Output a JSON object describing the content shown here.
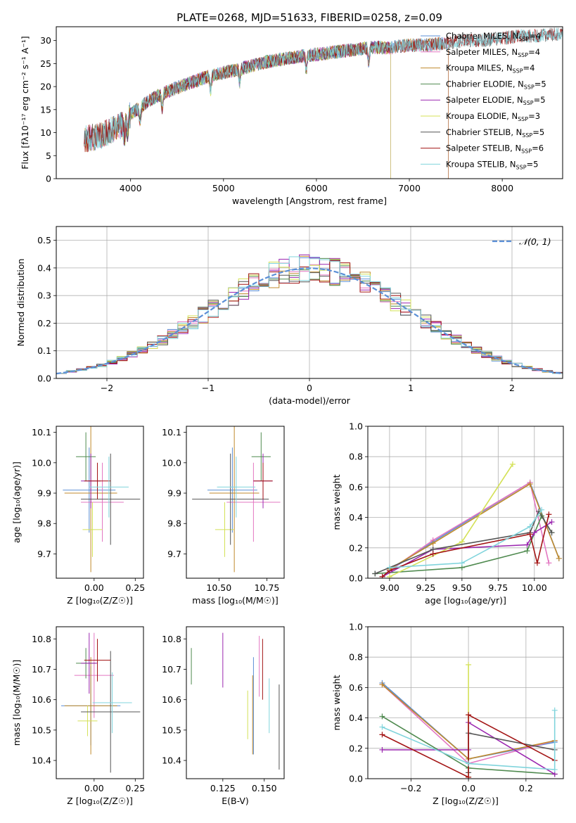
{
  "figure": {
    "title": "PLATE=0268, MJD=51633, FIBERID=0258, z=0.09"
  },
  "colors": {
    "Chabrier MILES": "#5b8fd6",
    "Salpeter MILES": "#e377c2",
    "Kroupa MILES": "#c08a2c",
    "Chabrier ELODIE": "#4f8a4f",
    "Salpeter ELODIE": "#9b27b0",
    "Kroupa ELODIE": "#d4e157",
    "Chabrier STELIB": "#555555",
    "Salpeter STELIB": "#a31515",
    "Kroupa STELIB": "#80d4dc",
    "gauss": "#5b8fd6"
  },
  "chart_data": [
    {
      "id": "spectrum",
      "type": "line",
      "title": "PLATE=0268, MJD=51633, FIBERID=0258, z=0.09",
      "xlabel": "wavelength [Angstrom, rest frame]",
      "ylabel": "Flux [fλ10⁻¹⁷ erg cm⁻² s⁻¹ A⁻¹]",
      "xlim": [
        3200,
        8650
      ],
      "ylim": [
        0,
        33
      ],
      "xticks": [
        4000,
        5000,
        6000,
        7000,
        8000
      ],
      "yticks": [
        0,
        5,
        10,
        15,
        20,
        25,
        30
      ],
      "grid": false,
      "legend_position": "top-right",
      "legend": [
        {
          "label": "Chabrier MILES, N",
          "sub": "SSP",
          "suffix": "=4",
          "color": "#5b8fd6"
        },
        {
          "label": "Salpeter MILES, N",
          "sub": "SSP",
          "suffix": "=4",
          "color": "#e377c2"
        },
        {
          "label": "Kroupa MILES, N",
          "sub": "SSP",
          "suffix": "=4",
          "color": "#c08a2c"
        },
        {
          "label": "Chabrier ELODIE, N",
          "sub": "SSP",
          "suffix": "=5",
          "color": "#4f8a4f"
        },
        {
          "label": "Salpeter ELODIE, N",
          "sub": "SSP",
          "suffix": "=5",
          "color": "#9b27b0"
        },
        {
          "label": "Kroupa ELODIE, N",
          "sub": "SSP",
          "suffix": "=3",
          "color": "#d4e157"
        },
        {
          "label": "Chabrier STELIB, N",
          "sub": "SSP",
          "suffix": "=5",
          "color": "#555555"
        },
        {
          "label": "Salpeter STELIB, N",
          "sub": "SSP",
          "suffix": "=6",
          "color": "#a31515"
        },
        {
          "label": "Kroupa STELIB, N",
          "sub": "SSP",
          "suffix": "=5",
          "color": "#80d4dc"
        }
      ],
      "continuum": {
        "x": [
          3500,
          3700,
          3900,
          4000,
          4200,
          4400,
          4600,
          4800,
          5000,
          5200,
          5500,
          5800,
          6000,
          6200,
          6400,
          6600,
          6800,
          7000,
          7200,
          7400,
          7600,
          7800,
          8000,
          8200,
          8400,
          8600
        ],
        "y": [
          8.5,
          9.5,
          11.5,
          14,
          17,
          19,
          20.5,
          22,
          23,
          24,
          25.5,
          26.5,
          27,
          27.5,
          28,
          28.5,
          28.5,
          29,
          29,
          29.5,
          30,
          30,
          30.5,
          31,
          31,
          31.5
        ]
      },
      "model_segments": [
        {
          "series": "Chabrier MILES",
          "x": [
            3500,
            7420
          ]
        },
        {
          "series": "Salpeter MILES",
          "x": [
            3500,
            7420
          ]
        },
        {
          "series": "Kroupa MILES",
          "x": [
            3500,
            7420
          ]
        },
        {
          "series": "Chabrier ELODIE",
          "x": [
            3900,
            6800
          ]
        },
        {
          "series": "Salpeter ELODIE",
          "x": [
            3900,
            6800
          ]
        },
        {
          "series": "Kroupa ELODIE",
          "x": [
            3900,
            6800
          ]
        },
        {
          "series": "Chabrier STELIB",
          "x": [
            3500,
            8650
          ]
        },
        {
          "series": "Salpeter STELIB",
          "x": [
            3500,
            8650
          ]
        },
        {
          "series": "Kroupa STELIB",
          "x": [
            3500,
            8650
          ]
        }
      ]
    },
    {
      "id": "residuals",
      "type": "bar",
      "xlabel": "(data-model)/error",
      "ylabel": "Normed distribution",
      "xlim": [
        -2.5,
        2.5
      ],
      "ylim": [
        0,
        0.55
      ],
      "xticks": [
        -2,
        -1,
        0,
        1,
        2
      ],
      "yticks": [
        0.0,
        0.1,
        0.2,
        0.3,
        0.4,
        0.5
      ],
      "grid": true,
      "legend_position": "top-right",
      "legend_label": "𝒩(0, 1)",
      "bins": {
        "start": -2.5,
        "width": 0.1,
        "count": 50
      },
      "curve": "gaussian mean 0 sigma 1"
    },
    {
      "id": "age_vs_Z",
      "type": "scatter",
      "xlabel": "Z [log₁₀(Z/Z☉)]",
      "ylabel": "age  [log₁₀(age/yr)]",
      "xlim": [
        -0.23,
        0.3
      ],
      "ylim": [
        9.62,
        10.12
      ],
      "xticks": [
        0.0,
        0.25
      ],
      "yticks": [
        9.7,
        9.8,
        9.9,
        10.0,
        10.1
      ],
      "points": [
        {
          "series": "Chabrier MILES",
          "x": -0.03,
          "xerr": 0.16,
          "y": 9.91,
          "yerr": 0.14
        },
        {
          "series": "Salpeter MILES",
          "x": 0.05,
          "xerr": 0.13,
          "y": 9.87,
          "yerr": 0.13
        },
        {
          "series": "Kroupa MILES",
          "x": -0.02,
          "xerr": 0.16,
          "y": 9.9,
          "yerr": 0.26
        },
        {
          "series": "Chabrier ELODIE",
          "x": -0.05,
          "xerr": 0.06,
          "y": 10.02,
          "yerr": 0.08
        },
        {
          "series": "Salpeter ELODIE",
          "x": -0.02,
          "xerr": 0.06,
          "y": 9.94,
          "yerr": 0.09
        },
        {
          "series": "Kroupa ELODIE",
          "x": -0.01,
          "xerr": 0.06,
          "y": 9.78,
          "yerr": 0.09
        },
        {
          "series": "Chabrier STELIB",
          "x": 0.1,
          "xerr": 0.18,
          "y": 9.88,
          "yerr": 0.15
        },
        {
          "series": "Salpeter STELIB",
          "x": 0.02,
          "xerr": 0.08,
          "y": 9.94,
          "yerr": 0.06
        },
        {
          "series": "Kroupa STELIB",
          "x": 0.09,
          "xerr": 0.12,
          "y": 9.92,
          "yerr": 0.1
        }
      ]
    },
    {
      "id": "age_vs_mass",
      "type": "scatter",
      "xlabel": "mass [log₁₀(M/M☉)]",
      "ylabel": "",
      "xlim": [
        10.33,
        10.84
      ],
      "ylim": [
        9.62,
        10.12
      ],
      "xticks": [
        10.5,
        10.75
      ],
      "yticks": [
        9.7,
        9.8,
        9.9,
        10.0,
        10.1
      ],
      "points": [
        {
          "series": "Chabrier MILES",
          "x": 10.57,
          "xerr": 0.13,
          "y": 9.91,
          "yerr": 0.14
        },
        {
          "series": "Salpeter MILES",
          "x": 10.68,
          "xerr": 0.14,
          "y": 9.87,
          "yerr": 0.13
        },
        {
          "series": "Kroupa MILES",
          "x": 10.58,
          "xerr": 0.13,
          "y": 9.9,
          "yerr": 0.26
        },
        {
          "series": "Chabrier ELODIE",
          "x": 10.72,
          "xerr": 0.05,
          "y": 10.02,
          "yerr": 0.08
        },
        {
          "series": "Salpeter ELODIE",
          "x": 10.73,
          "xerr": 0.05,
          "y": 9.94,
          "yerr": 0.09
        },
        {
          "series": "Kroupa ELODIE",
          "x": 10.53,
          "xerr": 0.05,
          "y": 9.78,
          "yerr": 0.09
        },
        {
          "series": "Chabrier STELIB",
          "x": 10.56,
          "xerr": 0.2,
          "y": 9.88,
          "yerr": 0.15
        },
        {
          "series": "Salpeter STELIB",
          "x": 10.73,
          "xerr": 0.05,
          "y": 9.94,
          "yerr": 0.06
        },
        {
          "series": "Kroupa STELIB",
          "x": 10.59,
          "xerr": 0.1,
          "y": 9.92,
          "yerr": 0.1
        }
      ]
    },
    {
      "id": "weight_vs_age",
      "type": "line",
      "xlabel": "age  [log₁₀(age/yr)]",
      "ylabel": "mass weight",
      "xlim": [
        8.85,
        10.2
      ],
      "ylim": [
        0,
        1.0
      ],
      "xticks": [
        9.0,
        9.25,
        9.5,
        9.75,
        10.0
      ],
      "yticks": [
        0.0,
        0.2,
        0.4,
        0.6,
        0.8,
        1.0
      ],
      "grid": true,
      "series": [
        {
          "name": "Chabrier MILES",
          "x": [
            9.0,
            9.3,
            9.97,
            10.17
          ],
          "y": [
            0.05,
            0.24,
            0.63,
            0.13
          ]
        },
        {
          "name": "Salpeter MILES",
          "x": [
            9.0,
            9.3,
            9.97,
            10.1
          ],
          "y": [
            0.05,
            0.25,
            0.63,
            0.1
          ]
        },
        {
          "name": "Kroupa MILES",
          "x": [
            9.0,
            9.3,
            9.97,
            10.17
          ],
          "y": [
            0.06,
            0.23,
            0.62,
            0.13
          ]
        },
        {
          "name": "Chabrier ELODIE",
          "x": [
            8.9,
            9.5,
            9.95,
            10.05,
            10.12
          ],
          "y": [
            0.03,
            0.07,
            0.18,
            0.41,
            0.3
          ]
        },
        {
          "name": "Salpeter ELODIE",
          "x": [
            8.95,
            9.3,
            9.95,
            10.0,
            10.12
          ],
          "y": [
            0.01,
            0.19,
            0.22,
            0.3,
            0.37
          ]
        },
        {
          "name": "Kroupa ELODIE",
          "x": [
            9.0,
            9.5,
            9.85
          ],
          "y": [
            0.01,
            0.24,
            0.75
          ]
        },
        {
          "name": "Chabrier STELIB",
          "x": [
            8.9,
            9.3,
            9.97,
            10.03,
            10.12
          ],
          "y": [
            0.03,
            0.19,
            0.3,
            0.44,
            0.3
          ]
        },
        {
          "name": "Salpeter STELIB",
          "x": [
            8.95,
            9.0,
            9.3,
            9.97,
            10.02,
            10.1
          ],
          "y": [
            0.01,
            0.05,
            0.16,
            0.29,
            0.1,
            0.42
          ]
        },
        {
          "name": "Kroupa STELIB",
          "x": [
            9.0,
            9.5,
            9.97,
            10.05
          ],
          "y": [
            0.07,
            0.1,
            0.34,
            0.45
          ]
        }
      ]
    },
    {
      "id": "mass_vs_Z",
      "type": "scatter",
      "xlabel": "Z [log₁₀(Z/Z☉)]",
      "ylabel": "mass [log₁₀(M/M☉)]",
      "xlim": [
        -0.23,
        0.3
      ],
      "ylim": [
        10.34,
        10.84
      ],
      "xticks": [
        0.0,
        0.25
      ],
      "yticks": [
        10.4,
        10.5,
        10.6,
        10.7,
        10.8
      ],
      "points": [
        {
          "series": "Chabrier MILES",
          "x": -0.02,
          "xerr": 0.18,
          "y": 10.58,
          "yerr": 0.13
        },
        {
          "series": "Salpeter MILES",
          "x": 0.0,
          "xerr": 0.12,
          "y": 10.68,
          "yerr": 0.14
        },
        {
          "series": "Kroupa MILES",
          "x": -0.02,
          "xerr": 0.16,
          "y": 10.58,
          "yerr": 0.16
        },
        {
          "series": "Chabrier ELODIE",
          "x": -0.05,
          "xerr": 0.06,
          "y": 10.72,
          "yerr": 0.05
        },
        {
          "series": "Salpeter ELODIE",
          "x": -0.03,
          "xerr": 0.05,
          "y": 10.72,
          "yerr": 0.1
        },
        {
          "series": "Kroupa ELODIE",
          "x": -0.04,
          "xerr": 0.06,
          "y": 10.53,
          "yerr": 0.05
        },
        {
          "series": "Chabrier STELIB",
          "x": 0.1,
          "xerr": 0.18,
          "y": 10.56,
          "yerr": 0.2
        },
        {
          "series": "Salpeter STELIB",
          "x": 0.02,
          "xerr": 0.08,
          "y": 10.73,
          "yerr": 0.07
        },
        {
          "series": "Kroupa STELIB",
          "x": 0.11,
          "xerr": 0.12,
          "y": 10.59,
          "yerr": 0.1
        }
      ]
    },
    {
      "id": "mass_vs_ebv",
      "type": "scatter",
      "xlabel": "E(B-V)",
      "ylabel": "",
      "xlim": [
        0.103,
        0.162
      ],
      "ylim": [
        10.34,
        10.84
      ],
      "xticks": [
        0.125,
        0.15
      ],
      "yticks": [
        10.4,
        10.5,
        10.6,
        10.7,
        10.8
      ],
      "points": [
        {
          "series": "Chabrier MILES",
          "x": 0.1435,
          "xerr": 0,
          "y": 10.58,
          "yerr": 0.16
        },
        {
          "series": "Salpeter MILES",
          "x": 0.147,
          "xerr": 0,
          "y": 10.71,
          "yerr": 0.1
        },
        {
          "series": "Kroupa MILES",
          "x": 0.143,
          "xerr": 0,
          "y": 10.55,
          "yerr": 0.13
        },
        {
          "series": "Chabrier ELODIE",
          "x": 0.106,
          "xerr": 0,
          "y": 10.71,
          "yerr": 0.06
        },
        {
          "series": "Salpeter ELODIE",
          "x": 0.125,
          "xerr": 0,
          "y": 10.73,
          "yerr": 0.09
        },
        {
          "series": "Kroupa ELODIE",
          "x": 0.14,
          "xerr": 0,
          "y": 10.55,
          "yerr": 0.08
        },
        {
          "series": "Chabrier STELIB",
          "x": 0.159,
          "xerr": 0,
          "y": 10.51,
          "yerr": 0.14
        },
        {
          "series": "Salpeter STELIB",
          "x": 0.149,
          "xerr": 0,
          "y": 10.7,
          "yerr": 0.1
        },
        {
          "series": "Kroupa STELIB",
          "x": 0.153,
          "xerr": 0,
          "y": 10.58,
          "yerr": 0.09
        }
      ]
    },
    {
      "id": "weight_vs_Z",
      "type": "line",
      "xlabel": "Z [log₁₀(Z/Z☉)]",
      "ylabel": "mass weight",
      "xlim": [
        -0.35,
        0.33
      ],
      "ylim": [
        0,
        1.0
      ],
      "xticks": [
        -0.2,
        0.0,
        0.2
      ],
      "yticks": [
        0.0,
        0.2,
        0.4,
        0.6,
        0.8,
        1.0
      ],
      "grid": true,
      "series": [
        {
          "name": "Chabrier MILES",
          "x": [
            -0.3,
            0.0,
            0.3
          ],
          "y": [
            0.63,
            0.13,
            0.24
          ]
        },
        {
          "name": "Salpeter MILES",
          "x": [
            -0.3,
            0.0,
            0.3
          ],
          "y": [
            0.62,
            0.1,
            0.25
          ]
        },
        {
          "name": "Kroupa MILES",
          "x": [
            -0.3,
            0.0,
            0.3
          ],
          "y": [
            0.62,
            0.13,
            0.25
          ]
        },
        {
          "name": "Chabrier ELODIE",
          "x": [
            -0.3,
            0.0,
            0.3
          ],
          "y": [
            0.41,
            0.07,
            0.03
          ]
        },
        {
          "name": "Salpeter ELODIE",
          "x": [
            -0.3,
            0.0,
            0.0,
            0.3
          ],
          "y": [
            0.19,
            0.19,
            0.37,
            0.03
          ]
        },
        {
          "name": "Kroupa ELODIE",
          "x": [
            0.0,
            0.0
          ],
          "y": [
            0.01,
            0.75
          ]
        },
        {
          "name": "Chabrier STELIB",
          "x": [
            0.0,
            0.0,
            0.3
          ],
          "y": [
            0.04,
            0.3,
            0.19
          ]
        },
        {
          "name": "Salpeter STELIB",
          "x": [
            -0.3,
            0.0,
            0.0,
            0.3
          ],
          "y": [
            0.29,
            0.01,
            0.42,
            0.12
          ]
        },
        {
          "name": "Kroupa STELIB",
          "x": [
            -0.3,
            0.0,
            0.3,
            0.3
          ],
          "y": [
            0.34,
            0.1,
            0.06,
            0.45
          ]
        }
      ]
    }
  ]
}
